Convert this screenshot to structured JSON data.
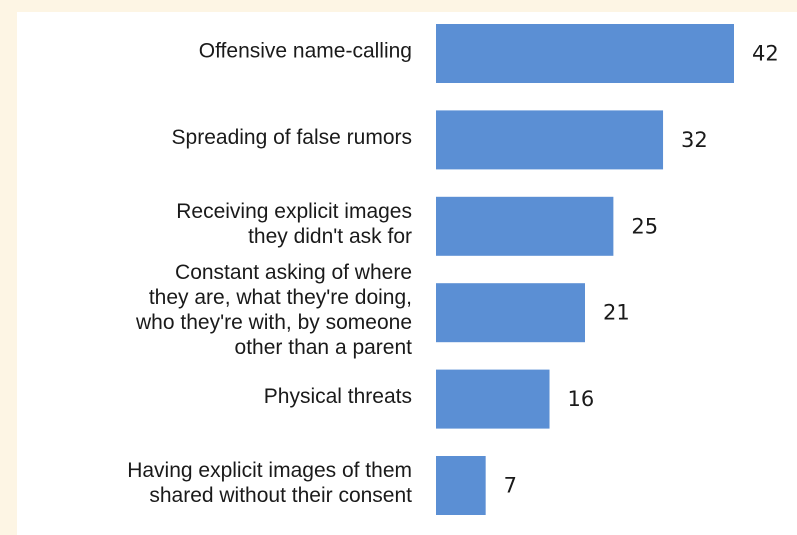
{
  "colors": {
    "page_background": "#fdf5e4",
    "panel_background": "#ffffff",
    "bar": "#5b8fd4",
    "text": "#1a1a1a"
  },
  "chart_data": {
    "type": "bar",
    "orientation": "horizontal",
    "categories": [
      "Offensive name-calling",
      "Spreading of false rumors",
      "Receiving explicit images they didn't ask for",
      "Constant asking of where they are, what they're doing, who they're with, by someone other than a parent",
      "Physical threats",
      "Having explicit images of them shared without their consent"
    ],
    "category_lines": [
      [
        "Offensive name-calling"
      ],
      [
        "Spreading of false rumors"
      ],
      [
        "Receiving explicit images",
        "they didn't ask for"
      ],
      [
        "Constant asking of where",
        "they are, what they're doing,",
        "who they're with, by someone",
        "other than a parent"
      ],
      [
        "Physical threats"
      ],
      [
        "Having explicit images of them",
        "shared without their consent"
      ]
    ],
    "values": [
      42,
      32,
      25,
      21,
      16,
      7
    ],
    "xlim": [
      0,
      42
    ],
    "grid": false,
    "legend": "none"
  }
}
